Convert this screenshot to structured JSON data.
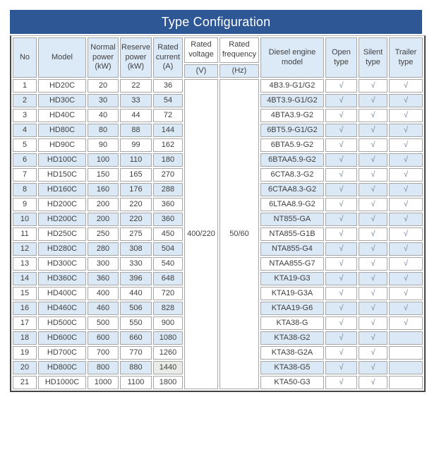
{
  "title": "Type Configuration",
  "colors": {
    "title_bg": "#2e5796",
    "title_text": "#ffffff",
    "header_bg": "#dce9f6",
    "row_alt_bg": "#dbe8f5",
    "row_bg": "#ffffff",
    "cell_border": "#a6a6a6",
    "outer_border": "#454545",
    "text": "#3f3f3f",
    "check": "#6f8098",
    "highlight_cell_bg": "#e9ece6"
  },
  "table": {
    "headers": {
      "no": "No",
      "model": "Model",
      "normal_power": "Normal power (kW)",
      "reserve_power": "Reserve power (kW)",
      "rated_current": "Rated current (A)",
      "rated_voltage": "Rated voltage",
      "rated_voltage_unit": "(V)",
      "rated_frequency": "Rated frequency",
      "rated_frequency_unit": "(Hz)",
      "diesel_engine_model": "Diesel engine model",
      "open_type": "Open type",
      "silent_type": "Silent type",
      "trailer_type": "Trailer type"
    },
    "rated_voltage_value": "400/220",
    "rated_frequency_value": "50/60",
    "check_symbol": "√",
    "rows": [
      {
        "no": "1",
        "model": "HD20C",
        "normal_power": "20",
        "reserve_power": "22",
        "rated_current": "36",
        "engine": "4B3.9-G1/G2",
        "open": "√",
        "silent": "√",
        "trailer": "√"
      },
      {
        "no": "2",
        "model": "HD30C",
        "normal_power": "30",
        "reserve_power": "33",
        "rated_current": "54",
        "engine": "4BT3.9-G1/G2",
        "open": "√",
        "silent": "√",
        "trailer": "√"
      },
      {
        "no": "3",
        "model": "HD40C",
        "normal_power": "40",
        "reserve_power": "44",
        "rated_current": "72",
        "engine": "4BTA3.9-G2",
        "open": "√",
        "silent": "√",
        "trailer": "√"
      },
      {
        "no": "4",
        "model": "HD80C",
        "normal_power": "80",
        "reserve_power": "88",
        "rated_current": "144",
        "engine": "6BT5.9-G1/G2",
        "open": "√",
        "silent": "√",
        "trailer": "√"
      },
      {
        "no": "5",
        "model": "HD90C",
        "normal_power": "90",
        "reserve_power": "99",
        "rated_current": "162",
        "engine": "6BTA5.9-G2",
        "open": "√",
        "silent": "√",
        "trailer": "√"
      },
      {
        "no": "6",
        "model": "HD100C",
        "normal_power": "100",
        "reserve_power": "110",
        "rated_current": "180",
        "engine": "6BTAA5.9-G2",
        "open": "√",
        "silent": "√",
        "trailer": "√"
      },
      {
        "no": "7",
        "model": "HD150C",
        "normal_power": "150",
        "reserve_power": "165",
        "rated_current": "270",
        "engine": "6CTA8.3-G2",
        "open": "√",
        "silent": "√",
        "trailer": "√"
      },
      {
        "no": "8",
        "model": "HD160C",
        "normal_power": "160",
        "reserve_power": "176",
        "rated_current": "288",
        "engine": "6CTAA8.3-G2",
        "open": "√",
        "silent": "√",
        "trailer": "√"
      },
      {
        "no": "9",
        "model": "HD200C",
        "normal_power": "200",
        "reserve_power": "220",
        "rated_current": "360",
        "engine": "6LTAA8.9-G2",
        "open": "√",
        "silent": "√",
        "trailer": "√"
      },
      {
        "no": "10",
        "model": "HD200C",
        "normal_power": "200",
        "reserve_power": "220",
        "rated_current": "360",
        "engine": "NT855-GA",
        "open": "√",
        "silent": "√",
        "trailer": "√"
      },
      {
        "no": "11",
        "model": "HD250C",
        "normal_power": "250",
        "reserve_power": "275",
        "rated_current": "450",
        "engine": "NTA855-G1B",
        "open": "√",
        "silent": "√",
        "trailer": "√"
      },
      {
        "no": "12",
        "model": "HD280C",
        "normal_power": "280",
        "reserve_power": "308",
        "rated_current": "504",
        "engine": "NTA855-G4",
        "open": "√",
        "silent": "√",
        "trailer": "√"
      },
      {
        "no": "13",
        "model": "HD300C",
        "normal_power": "300",
        "reserve_power": "330",
        "rated_current": "540",
        "engine": "NTAA855-G7",
        "open": "√",
        "silent": "√",
        "trailer": "√"
      },
      {
        "no": "14",
        "model": "HD360C",
        "normal_power": "360",
        "reserve_power": "396",
        "rated_current": "648",
        "engine": "KTA19-G3",
        "open": "√",
        "silent": "√",
        "trailer": "√"
      },
      {
        "no": "15",
        "model": "HD400C",
        "normal_power": "400",
        "reserve_power": "440",
        "rated_current": "720",
        "engine": "KTA19-G3A",
        "open": "√",
        "silent": "√",
        "trailer": "√"
      },
      {
        "no": "16",
        "model": "HD460C",
        "normal_power": "460",
        "reserve_power": "506",
        "rated_current": "828",
        "engine": "KTAA19-G6",
        "open": "√",
        "silent": "√",
        "trailer": "√"
      },
      {
        "no": "17",
        "model": "HD500C",
        "normal_power": "500",
        "reserve_power": "550",
        "rated_current": "900",
        "engine": "KTA38-G",
        "open": "√",
        "silent": "√",
        "trailer": "√"
      },
      {
        "no": "18",
        "model": "HD600C",
        "normal_power": "600",
        "reserve_power": "660",
        "rated_current": "1080",
        "engine": "KTA38-G2",
        "open": "√",
        "silent": "√",
        "trailer": ""
      },
      {
        "no": "19",
        "model": "HD700C",
        "normal_power": "700",
        "reserve_power": "770",
        "rated_current": "1260",
        "engine": "KTA38-G2A",
        "open": "√",
        "silent": "√",
        "trailer": ""
      },
      {
        "no": "20",
        "model": "HD800C",
        "normal_power": "800",
        "reserve_power": "880",
        "rated_current": "1440",
        "engine": "KTA38-G5",
        "open": "√",
        "silent": "√",
        "trailer": "",
        "current_highlight": true
      },
      {
        "no": "21",
        "model": "HD1000C",
        "normal_power": "1000",
        "reserve_power": "1100",
        "rated_current": "1800",
        "engine": "KTA50-G3",
        "open": "√",
        "silent": "√",
        "trailer": ""
      }
    ]
  }
}
